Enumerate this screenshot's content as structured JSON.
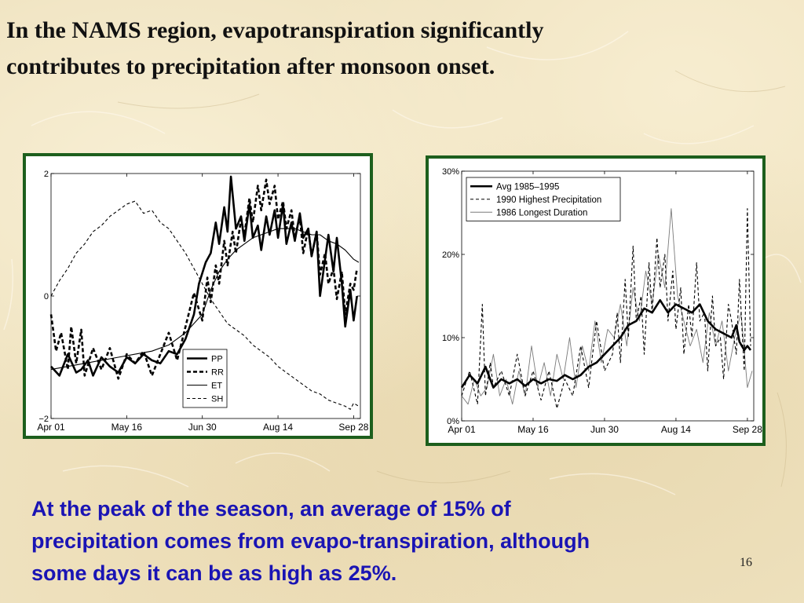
{
  "slide": {
    "title": "In the NAMS region, evapotranspiration significantly\ncontributes to precipitation after monsoon onset.",
    "caption": "At the peak of the season, an average of 15% of\nprecipitation comes from  evapo-transpiration, although\nsome days it can be as high as 25%.",
    "page_number": "16",
    "colors": {
      "frame": "#1d5f1d",
      "caption": "#1a14b4",
      "background": "#efe2bf"
    }
  },
  "chart_data": [
    {
      "type": "line",
      "xlabel": "",
      "ylabel": "",
      "x_tick_labels": [
        "Apr 01",
        "May 16",
        "Jun 30",
        "Aug 14",
        "Sep 28"
      ],
      "x_tick_days": [
        0,
        45,
        90,
        135,
        180
      ],
      "xlim": [
        0,
        184
      ],
      "ylim": [
        -2,
        2
      ],
      "y_ticks": [
        -2,
        0,
        2
      ],
      "y_tick_labels": [
        "−2",
        "0",
        "2"
      ],
      "legend_position": "bottom-center",
      "grid": false,
      "series": [
        {
          "name": "PP",
          "style": "thick-solid",
          "x": [
            0,
            5,
            10,
            15,
            18,
            22,
            25,
            30,
            35,
            40,
            45,
            50,
            55,
            60,
            65,
            70,
            75,
            80,
            85,
            88,
            92,
            95,
            98,
            100,
            103,
            105,
            107,
            110,
            113,
            115,
            118,
            120,
            123,
            125,
            128,
            130,
            133,
            135,
            138,
            140,
            143,
            145,
            148,
            150,
            153,
            155,
            158,
            160,
            163,
            165,
            168,
            170,
            173,
            175,
            178,
            180,
            182
          ],
          "y": [
            -1.15,
            -1.3,
            -0.95,
            -1.25,
            -1.2,
            -1.05,
            -1.3,
            -1.0,
            -1.15,
            -1.25,
            -1.0,
            -1.1,
            -0.95,
            -1.05,
            -1.1,
            -0.9,
            -0.95,
            -0.7,
            -0.3,
            0.2,
            0.55,
            0.7,
            1.2,
            0.85,
            1.45,
            1.05,
            1.95,
            1.1,
            1.3,
            0.9,
            1.5,
            0.95,
            1.15,
            0.75,
            1.3,
            1.0,
            1.4,
            0.95,
            1.5,
            0.85,
            1.2,
            0.9,
            1.35,
            0.95,
            1.1,
            0.65,
            1.05,
            0.0,
            0.6,
            1.0,
            0.4,
            0.95,
            0.2,
            -0.5,
            0.1,
            -0.4,
            0.0
          ]
        },
        {
          "name": "RR",
          "style": "thick-dashed",
          "x": [
            0,
            3,
            6,
            10,
            12,
            15,
            18,
            20,
            25,
            30,
            35,
            40,
            45,
            50,
            55,
            60,
            65,
            70,
            75,
            80,
            85,
            90,
            93,
            95,
            98,
            100,
            103,
            105,
            108,
            110,
            113,
            115,
            118,
            120,
            123,
            125,
            128,
            130,
            133,
            135,
            138,
            140,
            143,
            145,
            148,
            150,
            153,
            155,
            158,
            160,
            163,
            165,
            168,
            170,
            173,
            175,
            178,
            180,
            182
          ],
          "y": [
            -0.3,
            -0.9,
            -0.6,
            -1.2,
            -0.5,
            -1.1,
            -0.55,
            -1.3,
            -0.85,
            -1.2,
            -0.85,
            -1.35,
            -0.95,
            -1.1,
            -0.9,
            -1.3,
            -0.95,
            -0.6,
            -1.05,
            -0.5,
            0.05,
            -0.4,
            0.3,
            -0.1,
            0.5,
            0.2,
            0.9,
            0.5,
            1.05,
            0.7,
            1.25,
            1.0,
            1.6,
            1.2,
            1.8,
            1.4,
            1.9,
            1.5,
            1.8,
            1.25,
            1.55,
            1.1,
            1.4,
            0.95,
            1.3,
            0.7,
            1.1,
            0.65,
            1.05,
            0.35,
            0.7,
            0.2,
            0.45,
            -0.05,
            0.4,
            -0.3,
            0.2,
            0.1,
            0.45
          ]
        },
        {
          "name": "ET",
          "style": "thin-solid",
          "x": [
            0,
            10,
            20,
            30,
            40,
            50,
            60,
            70,
            80,
            90,
            95,
            100,
            105,
            110,
            115,
            120,
            125,
            130,
            135,
            140,
            145,
            150,
            155,
            160,
            165,
            170,
            175,
            180,
            183
          ],
          "y": [
            -1.2,
            -1.15,
            -1.1,
            -1.05,
            -1.0,
            -0.95,
            -0.9,
            -0.8,
            -0.6,
            -0.3,
            0.1,
            0.4,
            0.6,
            0.75,
            0.85,
            0.95,
            1.0,
            1.05,
            1.1,
            1.1,
            1.1,
            1.05,
            1.0,
            1.0,
            0.9,
            0.85,
            0.75,
            0.6,
            0.55
          ]
        },
        {
          "name": "SH",
          "style": "thin-dashed",
          "x": [
            0,
            5,
            10,
            15,
            20,
            25,
            30,
            35,
            40,
            45,
            50,
            55,
            60,
            65,
            70,
            75,
            80,
            85,
            90,
            95,
            100,
            105,
            110,
            115,
            120,
            125,
            130,
            135,
            140,
            145,
            150,
            155,
            160,
            165,
            170,
            175,
            178,
            180,
            183
          ],
          "y": [
            0.0,
            0.25,
            0.45,
            0.7,
            0.85,
            1.05,
            1.15,
            1.3,
            1.4,
            1.5,
            1.55,
            1.35,
            1.4,
            1.2,
            1.1,
            0.9,
            0.7,
            0.45,
            0.2,
            -0.05,
            -0.25,
            -0.45,
            -0.55,
            -0.65,
            -0.8,
            -0.9,
            -1.0,
            -1.15,
            -1.25,
            -1.35,
            -1.45,
            -1.55,
            -1.6,
            -1.7,
            -1.75,
            -1.8,
            -1.85,
            -1.75,
            -1.8
          ]
        }
      ]
    },
    {
      "type": "line",
      "xlabel": "",
      "ylabel": "",
      "x_tick_labels": [
        "Apr 01",
        "May 16",
        "Jun 30",
        "Aug 14",
        "Sep 28"
      ],
      "x_tick_days": [
        0,
        45,
        90,
        135,
        180
      ],
      "xlim": [
        0,
        184
      ],
      "ylim": [
        0,
        30
      ],
      "y_ticks": [
        0,
        10,
        20,
        30
      ],
      "y_tick_labels": [
        "0%",
        "10%",
        "20%",
        "30%"
      ],
      "legend_position": "top-left",
      "grid": false,
      "series": [
        {
          "name": "Avg 1985–1995",
          "style": "thick-solid",
          "x": [
            0,
            5,
            10,
            15,
            20,
            25,
            30,
            35,
            40,
            45,
            50,
            55,
            60,
            65,
            70,
            75,
            80,
            85,
            90,
            95,
            100,
            105,
            110,
            115,
            120,
            125,
            130,
            135,
            140,
            145,
            150,
            155,
            160,
            165,
            170,
            173,
            175,
            178,
            180,
            182
          ],
          "y": [
            4.0,
            5.5,
            4.5,
            6.5,
            4.0,
            5.0,
            4.5,
            5.0,
            4.2,
            5.0,
            4.5,
            5.0,
            4.8,
            5.5,
            5.0,
            5.5,
            6.5,
            7.0,
            8.0,
            9.0,
            10.0,
            11.5,
            12.0,
            13.5,
            13.0,
            14.5,
            13.0,
            14.0,
            13.5,
            13.0,
            14.0,
            12.0,
            11.0,
            10.5,
            10.0,
            11.5,
            9.5,
            8.5,
            9.0,
            8.5
          ]
        },
        {
          "name": "1990 Highest Precipitation",
          "style": "thin-dashed",
          "x": [
            0,
            5,
            10,
            13,
            15,
            18,
            20,
            25,
            30,
            35,
            40,
            45,
            50,
            55,
            60,
            65,
            70,
            75,
            80,
            85,
            90,
            95,
            98,
            100,
            103,
            105,
            108,
            110,
            113,
            115,
            118,
            120,
            123,
            125,
            128,
            130,
            133,
            135,
            138,
            140,
            143,
            145,
            148,
            150,
            153,
            155,
            158,
            160,
            163,
            165,
            168,
            170,
            173,
            175,
            178,
            180,
            182
          ],
          "y": [
            3.0,
            6.0,
            2.0,
            14.0,
            3.0,
            7.0,
            4.0,
            6.0,
            3.0,
            8.0,
            3.0,
            6.0,
            2.5,
            6.0,
            1.5,
            5.0,
            3.0,
            9.0,
            4.0,
            12.0,
            6.0,
            8.0,
            13.0,
            7.0,
            17.0,
            10.0,
            21.0,
            12.0,
            15.0,
            8.0,
            19.0,
            13.0,
            22.0,
            16.0,
            20.0,
            12.0,
            18.0,
            11.0,
            16.0,
            8.0,
            14.0,
            10.0,
            19.0,
            12.0,
            13.0,
            6.0,
            15.0,
            9.0,
            10.0,
            5.0,
            14.0,
            12.0,
            8.0,
            17.0,
            6.0,
            25.5,
            9.0
          ]
        },
        {
          "name": "1986 Longest Duration",
          "style": "thin-solid-gray",
          "x": [
            0,
            4,
            8,
            12,
            16,
            20,
            24,
            28,
            32,
            36,
            40,
            44,
            48,
            52,
            56,
            60,
            64,
            68,
            72,
            76,
            80,
            84,
            88,
            92,
            96,
            100,
            104,
            108,
            112,
            116,
            120,
            124,
            128,
            132,
            136,
            140,
            144,
            148,
            152,
            156,
            160,
            164,
            168,
            172,
            176,
            180,
            183
          ],
          "y": [
            3.0,
            2.0,
            5.0,
            3.0,
            4.0,
            8.0,
            3.0,
            5.0,
            2.0,
            6.0,
            3.0,
            9.0,
            4.0,
            7.0,
            3.0,
            8.0,
            5.0,
            10.0,
            4.0,
            9.0,
            6.0,
            12.0,
            7.0,
            11.0,
            10.0,
            14.0,
            9.0,
            16.0,
            12.0,
            18.0,
            14.0,
            20.0,
            16.0,
            25.5,
            15.0,
            12.0,
            9.0,
            11.0,
            7.0,
            13.0,
            9.0,
            12.0,
            6.0,
            10.0,
            13.0,
            4.0,
            6.0
          ]
        }
      ]
    }
  ]
}
